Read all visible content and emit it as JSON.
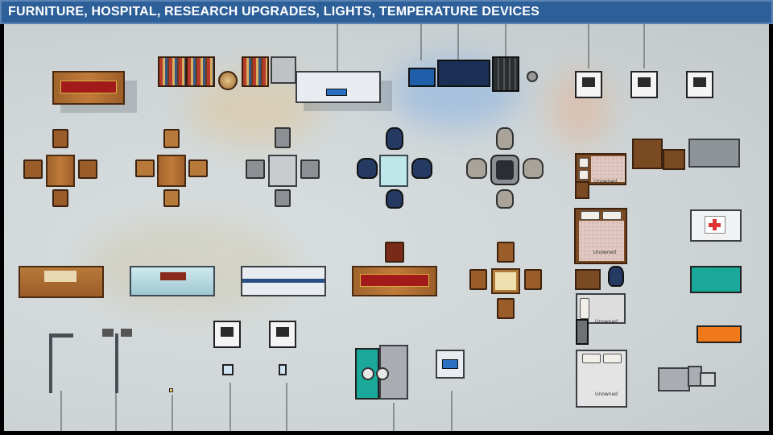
{
  "banner": {
    "title": "FURNITURE, HOSPITAL, RESEARCH UPGRADES, LIGHTS, TEMPERATURE DEVICES"
  },
  "beds": {
    "owner_label": "Unowned"
  },
  "colors": {
    "banner_bg": "#2d5f99",
    "floor": "#d4d9da",
    "wood": "#b06e32",
    "red_runner": "#a31a1a",
    "navy_chair": "#253a63",
    "medical_teal": "#1aa89a",
    "medical_orange": "#f07a1a"
  }
}
